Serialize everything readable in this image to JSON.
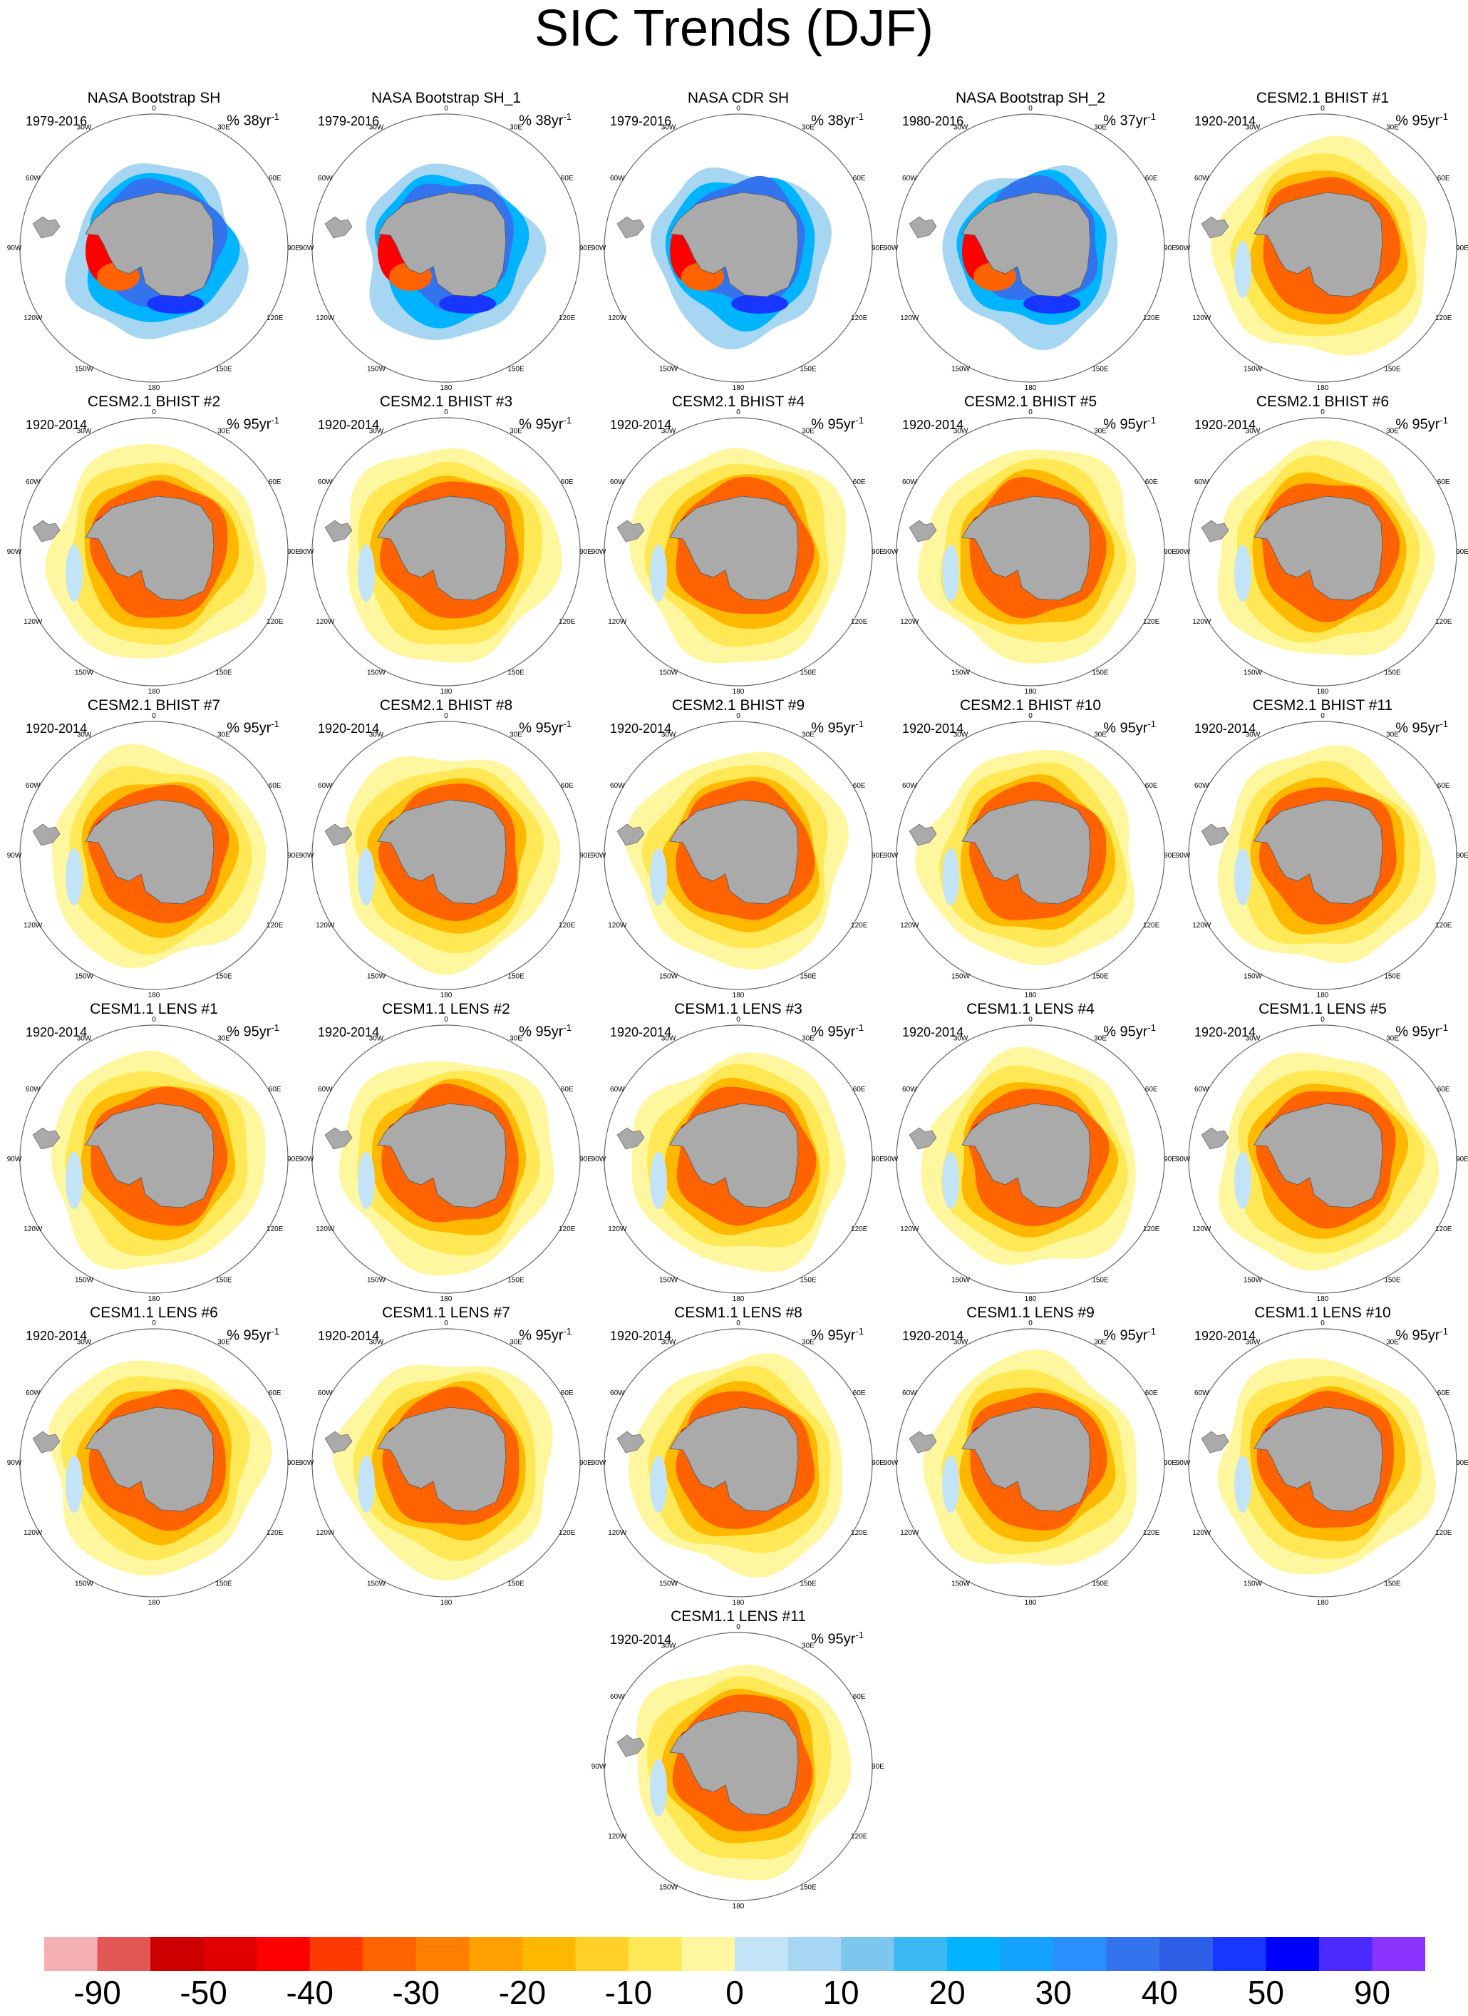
{
  "title": "SIC Trends (DJF)",
  "colors": {
    "land": "#aaaaaa",
    "map_border": "#666666",
    "colorbar": [
      "#f4b0b4",
      "#e25755",
      "#cc0000",
      "#e00000",
      "#ff0000",
      "#ff3a00",
      "#ff6200",
      "#ff8000",
      "#ff9f00",
      "#ffb800",
      "#ffd128",
      "#ffe855",
      "#fff7a0",
      "#c3e4f6",
      "#a6d6f2",
      "#7dc7ef",
      "#3ab8f4",
      "#00b4ff",
      "#13a2ff",
      "#2a8eff",
      "#3374ee",
      "#2f5ee6",
      "#1736ff",
      "#0000ff",
      "#4a2aff",
      "#8a33ff"
    ]
  },
  "lon_labels": [
    "0",
    "30E",
    "60E",
    "90E",
    "120E",
    "150E",
    "180",
    "150W",
    "120W",
    "90W",
    "60W",
    "30W"
  ],
  "chart_data": {
    "type": "polar-map",
    "variable": "sea ice concentration trend",
    "colorbar": {
      "tick_labels": [
        "-90",
        "-50",
        "-40",
        "-30",
        "-20",
        "-10",
        "0",
        "10",
        "20",
        "30",
        "40",
        "50",
        "90"
      ]
    },
    "panels": [
      {
        "title": "NASA Bootstrap SH",
        "years": "1979-2016",
        "unit": "% 38yr",
        "unit_exp": "-1",
        "pattern": "obs"
      },
      {
        "title": "NASA Bootstrap SH_1",
        "years": "1979-2016",
        "unit": "% 38yr",
        "unit_exp": "-1",
        "pattern": "obs"
      },
      {
        "title": "NASA CDR SH",
        "years": "1979-2016",
        "unit": "% 38yr",
        "unit_exp": "-1",
        "pattern": "obs"
      },
      {
        "title": "NASA Bootstrap SH_2",
        "years": "1980-2016",
        "unit": "% 37yr",
        "unit_exp": "-1",
        "pattern": "obs"
      },
      {
        "title": "CESM2.1 BHIST #1",
        "years": "1920-2014",
        "unit": "% 95yr",
        "unit_exp": "-1",
        "pattern": "model"
      },
      {
        "title": "CESM2.1 BHIST #2",
        "years": "1920-2014",
        "unit": "% 95yr",
        "unit_exp": "-1",
        "pattern": "model"
      },
      {
        "title": "CESM2.1 BHIST #3",
        "years": "1920-2014",
        "unit": "% 95yr",
        "unit_exp": "-1",
        "pattern": "model"
      },
      {
        "title": "CESM2.1 BHIST #4",
        "years": "1920-2014",
        "unit": "% 95yr",
        "unit_exp": "-1",
        "pattern": "model"
      },
      {
        "title": "CESM2.1 BHIST #5",
        "years": "1920-2014",
        "unit": "% 95yr",
        "unit_exp": "-1",
        "pattern": "model"
      },
      {
        "title": "CESM2.1 BHIST #6",
        "years": "1920-2014",
        "unit": "% 95yr",
        "unit_exp": "-1",
        "pattern": "model"
      },
      {
        "title": "CESM2.1 BHIST #7",
        "years": "1920-2014",
        "unit": "% 95yr",
        "unit_exp": "-1",
        "pattern": "model"
      },
      {
        "title": "CESM2.1 BHIST #8",
        "years": "1920-2014",
        "unit": "% 95yr",
        "unit_exp": "-1",
        "pattern": "model"
      },
      {
        "title": "CESM2.1 BHIST #9",
        "years": "1920-2014",
        "unit": "% 95yr",
        "unit_exp": "-1",
        "pattern": "model"
      },
      {
        "title": "CESM2.1 BHIST #10",
        "years": "1920-2014",
        "unit": "% 95yr",
        "unit_exp": "-1",
        "pattern": "model"
      },
      {
        "title": "CESM2.1 BHIST #11",
        "years": "1920-2014",
        "unit": "% 95yr",
        "unit_exp": "-1",
        "pattern": "model"
      },
      {
        "title": "CESM1.1 LENS #1",
        "years": "1920-2014",
        "unit": "% 95yr",
        "unit_exp": "-1",
        "pattern": "model"
      },
      {
        "title": "CESM1.1 LENS #2",
        "years": "1920-2014",
        "unit": "% 95yr",
        "unit_exp": "-1",
        "pattern": "model"
      },
      {
        "title": "CESM1.1 LENS #3",
        "years": "1920-2014",
        "unit": "% 95yr",
        "unit_exp": "-1",
        "pattern": "model"
      },
      {
        "title": "CESM1.1 LENS #4",
        "years": "1920-2014",
        "unit": "% 95yr",
        "unit_exp": "-1",
        "pattern": "model"
      },
      {
        "title": "CESM1.1 LENS #5",
        "years": "1920-2014",
        "unit": "% 95yr",
        "unit_exp": "-1",
        "pattern": "model"
      },
      {
        "title": "CESM1.1 LENS #6",
        "years": "1920-2014",
        "unit": "% 95yr",
        "unit_exp": "-1",
        "pattern": "model"
      },
      {
        "title": "CESM1.1 LENS #7",
        "years": "1920-2014",
        "unit": "% 95yr",
        "unit_exp": "-1",
        "pattern": "model"
      },
      {
        "title": "CESM1.1 LENS #8",
        "years": "1920-2014",
        "unit": "% 95yr",
        "unit_exp": "-1",
        "pattern": "model"
      },
      {
        "title": "CESM1.1 LENS #9",
        "years": "1920-2014",
        "unit": "% 95yr",
        "unit_exp": "-1",
        "pattern": "model"
      },
      {
        "title": "CESM1.1 LENS #10",
        "years": "1920-2014",
        "unit": "% 95yr",
        "unit_exp": "-1",
        "pattern": "model"
      },
      {
        "title": "CESM1.1 LENS #11",
        "years": "1920-2014",
        "unit": "% 95yr",
        "unit_exp": "-1",
        "pattern": "model"
      }
    ]
  }
}
